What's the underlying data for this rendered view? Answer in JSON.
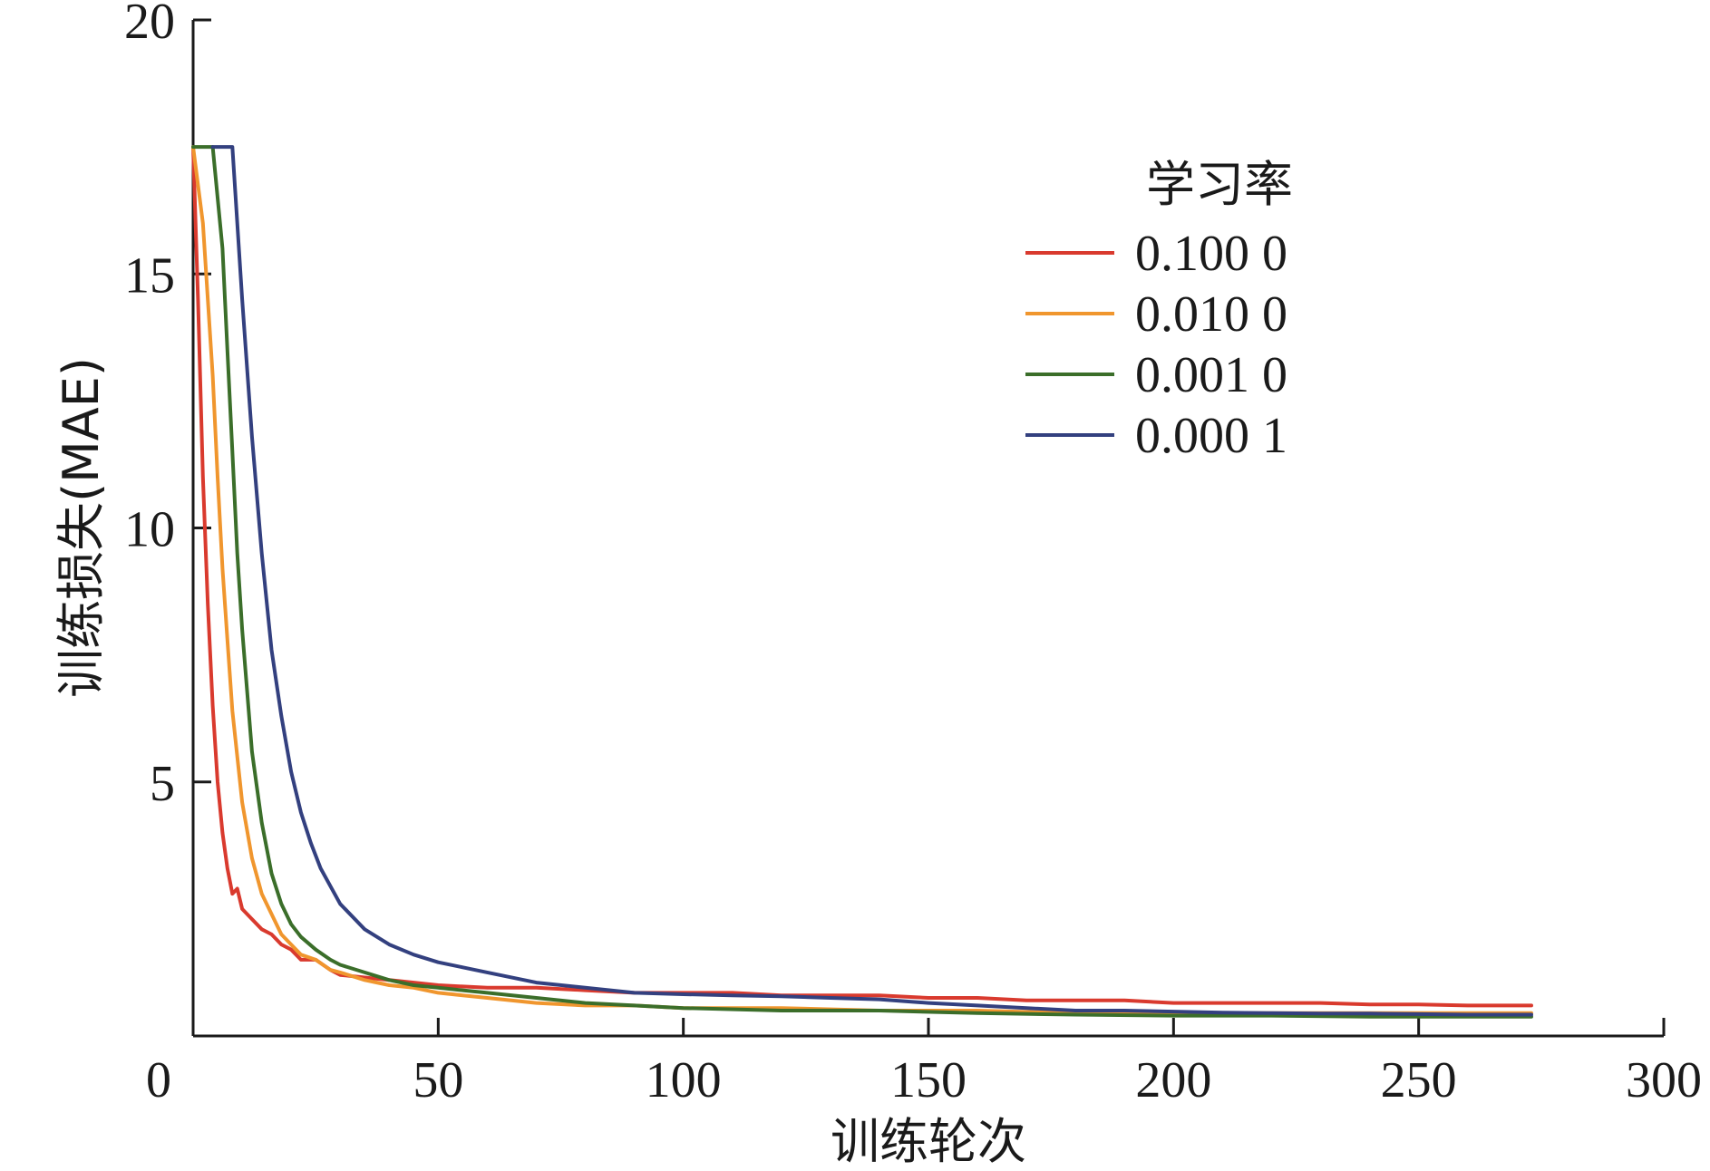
{
  "chart_data": {
    "type": "line",
    "title": "",
    "xlabel": "训练轮次",
    "ylabel": "训练损失(MAE)",
    "xlim": [
      0,
      300
    ],
    "ylim": [
      0,
      20
    ],
    "xticks": [
      0,
      50,
      100,
      150,
      200,
      250,
      300
    ],
    "yticks": [
      5,
      10,
      15,
      20
    ],
    "xtick_labels": [
      "0",
      "50",
      "100",
      "150",
      "200",
      "250",
      "300"
    ],
    "ytick_labels": [
      "5",
      "10",
      "15",
      "20"
    ],
    "grid": false,
    "legend": {
      "title": "学习率",
      "placement": "top-right"
    },
    "series": [
      {
        "name": "0.100 0",
        "color": "#d93a2e",
        "x": [
          0,
          1,
          2,
          3,
          4,
          5,
          6,
          7,
          8,
          9,
          10,
          12,
          14,
          16,
          18,
          20,
          22,
          25,
          28,
          30,
          35,
          40,
          45,
          50,
          60,
          70,
          80,
          90,
          100,
          110,
          120,
          130,
          140,
          150,
          160,
          170,
          180,
          190,
          200,
          210,
          220,
          230,
          240,
          250,
          260,
          268,
          273
        ],
        "y": [
          17.5,
          14.5,
          11.0,
          8.5,
          6.5,
          5.0,
          4.0,
          3.3,
          2.8,
          2.9,
          2.5,
          2.3,
          2.1,
          2.0,
          1.8,
          1.7,
          1.5,
          1.5,
          1.3,
          1.2,
          1.15,
          1.1,
          1.05,
          1.0,
          0.95,
          0.95,
          0.9,
          0.85,
          0.85,
          0.85,
          0.8,
          0.8,
          0.8,
          0.75,
          0.75,
          0.7,
          0.7,
          0.7,
          0.65,
          0.65,
          0.65,
          0.65,
          0.62,
          0.62,
          0.6,
          0.6,
          0.6
        ]
      },
      {
        "name": "0.010 0",
        "color": "#f0962e",
        "x": [
          0,
          2,
          4,
          5,
          6,
          7,
          8,
          10,
          12,
          14,
          16,
          18,
          20,
          22,
          25,
          28,
          30,
          35,
          40,
          45,
          50,
          55,
          60,
          70,
          80,
          90,
          100,
          120,
          140,
          160,
          180,
          200,
          220,
          240,
          260,
          273
        ],
        "y": [
          17.5,
          16.0,
          13.0,
          11.0,
          9.2,
          7.8,
          6.4,
          4.6,
          3.5,
          2.8,
          2.4,
          2.0,
          1.8,
          1.6,
          1.5,
          1.3,
          1.25,
          1.1,
          1.0,
          0.95,
          0.85,
          0.8,
          0.75,
          0.65,
          0.6,
          0.6,
          0.55,
          0.55,
          0.5,
          0.5,
          0.45,
          0.45,
          0.45,
          0.45,
          0.45,
          0.45
        ]
      },
      {
        "name": "0.001 0",
        "color": "#3b6e2a",
        "x": [
          0,
          2,
          4,
          6,
          7,
          8,
          9,
          10,
          12,
          14,
          16,
          18,
          20,
          22,
          25,
          28,
          30,
          35,
          40,
          45,
          50,
          55,
          60,
          70,
          80,
          90,
          100,
          120,
          140,
          160,
          180,
          200,
          220,
          240,
          260,
          273
        ],
        "y": [
          17.5,
          17.5,
          17.5,
          15.5,
          13.5,
          11.5,
          9.5,
          8.0,
          5.6,
          4.2,
          3.2,
          2.6,
          2.2,
          1.95,
          1.7,
          1.5,
          1.4,
          1.25,
          1.1,
          1.0,
          0.95,
          0.9,
          0.85,
          0.75,
          0.65,
          0.6,
          0.55,
          0.5,
          0.5,
          0.45,
          0.42,
          0.4,
          0.4,
          0.38,
          0.38,
          0.38
        ]
      },
      {
        "name": "0.000 1",
        "color": "#33407f",
        "x": [
          4,
          6,
          8,
          10,
          12,
          14,
          16,
          18,
          20,
          22,
          24,
          26,
          28,
          30,
          35,
          40,
          45,
          50,
          55,
          60,
          70,
          80,
          90,
          100,
          110,
          120,
          130,
          140,
          150,
          160,
          170,
          180,
          190,
          200,
          210,
          220,
          230,
          240,
          250,
          260,
          273
        ],
        "y": [
          17.5,
          17.5,
          17.5,
          14.5,
          11.8,
          9.5,
          7.6,
          6.3,
          5.2,
          4.4,
          3.8,
          3.3,
          2.95,
          2.6,
          2.1,
          1.8,
          1.6,
          1.45,
          1.35,
          1.25,
          1.05,
          0.95,
          0.85,
          0.82,
          0.8,
          0.78,
          0.75,
          0.72,
          0.65,
          0.6,
          0.55,
          0.5,
          0.5,
          0.48,
          0.46,
          0.45,
          0.44,
          0.44,
          0.43,
          0.42,
          0.42
        ]
      }
    ]
  }
}
